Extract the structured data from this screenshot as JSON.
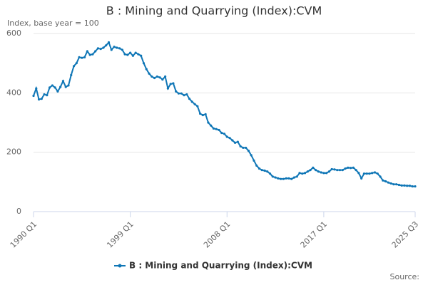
{
  "chart_data": {
    "type": "line",
    "title": "B : Mining and Quarrying (Index):CVM",
    "y_label": "Index, base year = 100",
    "source": "Source:",
    "categories": [
      "1990 Q1",
      null,
      null,
      null,
      null,
      null,
      null,
      null,
      null,
      null,
      null,
      null,
      null,
      null,
      null,
      null,
      null,
      null,
      null,
      null,
      null,
      null,
      null,
      null,
      null,
      null,
      null,
      null,
      null,
      null,
      null,
      null,
      null,
      null,
      null,
      null,
      "1999 Q1",
      null,
      null,
      null,
      null,
      null,
      null,
      null,
      null,
      null,
      null,
      null,
      null,
      null,
      null,
      null,
      null,
      null,
      null,
      null,
      null,
      null,
      null,
      null,
      null,
      null,
      null,
      null,
      null,
      null,
      null,
      null,
      null,
      null,
      null,
      null,
      "2008 Q1",
      null,
      null,
      null,
      null,
      null,
      null,
      null,
      null,
      null,
      null,
      null,
      null,
      null,
      null,
      null,
      null,
      null,
      null,
      null,
      null,
      null,
      null,
      null,
      null,
      null,
      null,
      null,
      null,
      null,
      null,
      null,
      null,
      null,
      null,
      null,
      "2017 Q1",
      null,
      null,
      null,
      null,
      null,
      null,
      null,
      null,
      null,
      null,
      null,
      null,
      null,
      null,
      null,
      null,
      null,
      null,
      null,
      null,
      null,
      null,
      null,
      null,
      null,
      null,
      null,
      null,
      null,
      null,
      null,
      null,
      null,
      "2025 Q3"
    ],
    "series": [
      {
        "name": "B : Mining and Quarrying (Index):CVM",
        "color": "#0f76b6",
        "values": [
          390,
          415,
          378,
          380,
          395,
          392,
          418,
          425,
          418,
          405,
          420,
          440,
          420,
          425,
          460,
          490,
          500,
          520,
          518,
          520,
          540,
          528,
          530,
          540,
          550,
          548,
          552,
          560,
          570,
          545,
          555,
          552,
          550,
          545,
          530,
          528,
          535,
          525,
          535,
          530,
          525,
          500,
          480,
          465,
          455,
          450,
          455,
          452,
          445,
          455,
          415,
          430,
          432,
          405,
          398,
          398,
          392,
          395,
          380,
          370,
          362,
          355,
          330,
          325,
          328,
          300,
          290,
          280,
          278,
          275,
          265,
          262,
          252,
          248,
          240,
          232,
          235,
          220,
          215,
          215,
          205,
          190,
          172,
          155,
          145,
          140,
          138,
          135,
          128,
          118,
          115,
          112,
          110,
          110,
          112,
          112,
          110,
          115,
          118,
          130,
          128,
          130,
          135,
          140,
          148,
          140,
          135,
          132,
          130,
          130,
          135,
          143,
          142,
          140,
          140,
          140,
          145,
          148,
          147,
          148,
          140,
          130,
          112,
          128,
          128,
          128,
          130,
          132,
          128,
          118,
          105,
          102,
          98,
          95,
          92,
          92,
          90,
          88,
          88,
          87,
          87,
          85,
          85
        ]
      }
    ],
    "ylim": [
      0,
      600
    ],
    "yticks": [
      0,
      200,
      400,
      600
    ],
    "grid": true
  }
}
